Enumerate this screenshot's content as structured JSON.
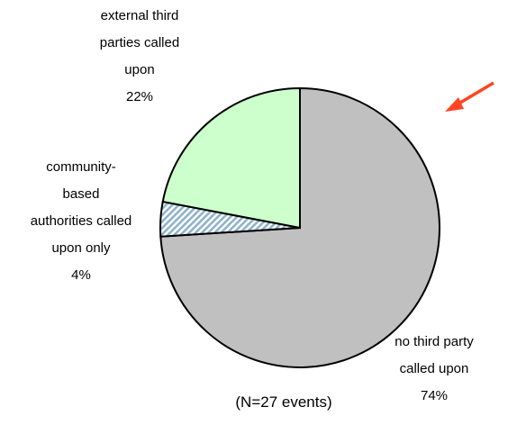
{
  "chart_data": {
    "type": "pie",
    "categories": [
      "no third party\ncalled upon",
      "community-\nbased\nauthorities called\nupon only",
      "external third\nparties called\nupon"
    ],
    "values": [
      74,
      4,
      22
    ],
    "value_labels": [
      "74%",
      "4%",
      "22%"
    ],
    "colors": [
      "#c0c0c0",
      "#a9c9d9",
      "#ccffcc"
    ],
    "hatch": [
      false,
      true,
      false
    ],
    "annotation": "(N=27 events)"
  }
}
